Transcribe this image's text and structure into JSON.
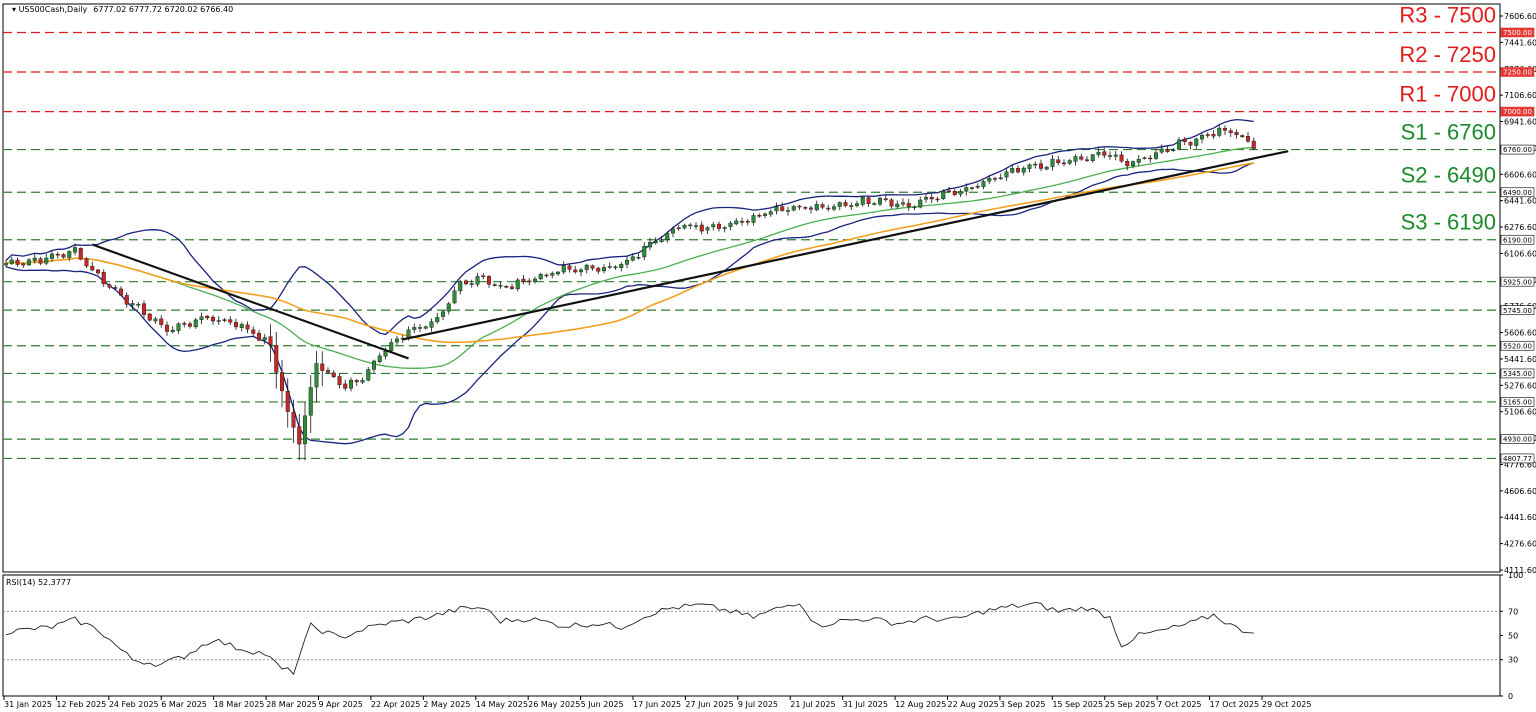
{
  "header": {
    "symbol": "US500Cash,Daily",
    "ohlc": "6777.02 6777.72 6720.02 6766.40"
  },
  "rsi_label": "RSI(14) 52.3777",
  "colors": {
    "resistance": "#e31b1b",
    "support": "#1a8a2a",
    "level_line": "#2e7d32",
    "bull": "#2e8b3a",
    "bear": "#c62828",
    "bollinger": "#1a237e",
    "ma_green": "#4caf50",
    "ma_orange": "#f39c12",
    "rsi": "#222222"
  },
  "chart_data": [
    {
      "type": "candlestick",
      "x_ticks": [
        "31 Jan 2025",
        "12 Feb 2025",
        "24 Feb 2025",
        "6 Mar 2025",
        "18 Mar 2025",
        "28 Mar 2025",
        "9 Apr 2025",
        "22 Apr 2025",
        "2 May 2025",
        "14 May 2025",
        "26 May 2025",
        "5 Jun 2025",
        "17 Jun 2025",
        "27 Jun 2025",
        "9 Jul 2025",
        "21 Jul 2025",
        "31 Jul 2025",
        "12 Aug 2025",
        "22 Aug 2025",
        "3 Sep 2025",
        "15 Sep 2025",
        "25 Sep 2025",
        "7 Oct 2025",
        "17 Oct 2025",
        "29 Oct 2025"
      ],
      "y_ticks": [
        "7606.60",
        "7441.60",
        "7276.60",
        "7106.60",
        "6941.60",
        "6776.60",
        "6606.60",
        "6441.60",
        "6276.60",
        "6106.60",
        "5941.60",
        "5776.60",
        "5606.60",
        "5441.60",
        "5276.60",
        "5106.60",
        "4941.60",
        "4776.60",
        "4606.60",
        "4441.60",
        "4276.60",
        "4111.60"
      ],
      "ylim": [
        4090,
        7680
      ],
      "levels": [
        {
          "label": "R3 - 7500",
          "value": 7500,
          "badge": "7500.00",
          "kind": "resistance"
        },
        {
          "label": "R2 - 7250",
          "value": 7250,
          "badge": "7250.00",
          "kind": "resistance"
        },
        {
          "label": "R1 - 7000",
          "value": 7000,
          "badge": "7000.00",
          "kind": "resistance"
        },
        {
          "label": "S1 - 6760",
          "value": 6760,
          "badge": "6760.00",
          "kind": "support"
        },
        {
          "label": "S2 - 6490",
          "value": 6490,
          "badge": "6490.00",
          "kind": "support"
        },
        {
          "label": "S3 - 6190",
          "value": 6190,
          "badge": "6190.00",
          "kind": "support"
        },
        {
          "label": "",
          "value": 5925,
          "badge": "5925.00",
          "kind": "support"
        },
        {
          "label": "",
          "value": 5745,
          "badge": "5745.00",
          "kind": "support"
        },
        {
          "label": "",
          "value": 5520,
          "badge": "5520.00",
          "kind": "support"
        },
        {
          "label": "",
          "value": 5345,
          "badge": "5345.00",
          "kind": "support"
        },
        {
          "label": "",
          "value": 5165,
          "badge": "5165.00",
          "kind": "support"
        },
        {
          "label": "",
          "value": 4930,
          "badge": "4930.00",
          "kind": "support"
        },
        {
          "label": "",
          "value": 4807.77,
          "badge": "4807.77",
          "kind": "support"
        }
      ],
      "close_anchors": [
        [
          0,
          6040
        ],
        [
          6,
          6065
        ],
        [
          12,
          6120
        ],
        [
          16,
          5960
        ],
        [
          22,
          5780
        ],
        [
          28,
          5620
        ],
        [
          35,
          5700
        ],
        [
          41,
          5650
        ],
        [
          46,
          5520
        ],
        [
          49,
          5090
        ],
        [
          51,
          4910
        ],
        [
          54,
          5420
        ],
        [
          59,
          5250
        ],
        [
          62,
          5320
        ],
        [
          66,
          5500
        ],
        [
          70,
          5620
        ],
        [
          75,
          5670
        ],
        [
          79,
          5910
        ],
        [
          83,
          5960
        ],
        [
          86,
          5880
        ],
        [
          92,
          5950
        ],
        [
          97,
          6000
        ],
        [
          103,
          6010
        ],
        [
          108,
          6040
        ],
        [
          113,
          6200
        ],
        [
          118,
          6280
        ],
        [
          123,
          6270
        ],
        [
          128,
          6310
        ],
        [
          133,
          6380
        ],
        [
          138,
          6400
        ],
        [
          143,
          6390
        ],
        [
          147,
          6420
        ],
        [
          152,
          6450
        ],
        [
          157,
          6400
        ],
        [
          162,
          6470
        ],
        [
          167,
          6500
        ],
        [
          172,
          6580
        ],
        [
          177,
          6640
        ],
        [
          182,
          6670
        ],
        [
          187,
          6700
        ],
        [
          192,
          6740
        ],
        [
          195,
          6660
        ],
        [
          198,
          6710
        ],
        [
          203,
          6780
        ],
        [
          207,
          6830
        ],
        [
          211,
          6880
        ],
        [
          214,
          6860
        ],
        [
          217,
          6766
        ]
      ],
      "trendlines": [
        {
          "from": [
            15,
            6160
          ],
          "to": [
            70,
            5440
          ]
        },
        {
          "from": [
            69,
            5560
          ],
          "to": [
            223,
            6750
          ]
        }
      ]
    },
    {
      "type": "line",
      "name": "RSI(14)",
      "y_ticks": [
        "100",
        "70",
        "50",
        "30",
        "0"
      ],
      "ylim": [
        0,
        100
      ],
      "levels": [
        70,
        30
      ],
      "value_anchors": [
        [
          0,
          53
        ],
        [
          8,
          57
        ],
        [
          12,
          63
        ],
        [
          16,
          55
        ],
        [
          20,
          38
        ],
        [
          22,
          30
        ],
        [
          27,
          26
        ],
        [
          31,
          33
        ],
        [
          36,
          47
        ],
        [
          40,
          40
        ],
        [
          45,
          35
        ],
        [
          48,
          22
        ],
        [
          50,
          20
        ],
        [
          53,
          58
        ],
        [
          58,
          48
        ],
        [
          62,
          55
        ],
        [
          66,
          60
        ],
        [
          71,
          63
        ],
        [
          75,
          67
        ],
        [
          79,
          72
        ],
        [
          83,
          73
        ],
        [
          86,
          62
        ],
        [
          91,
          64
        ],
        [
          97,
          58
        ],
        [
          103,
          60
        ],
        [
          107,
          57
        ],
        [
          112,
          68
        ],
        [
          116,
          73
        ],
        [
          121,
          75
        ],
        [
          126,
          70
        ],
        [
          130,
          65
        ],
        [
          134,
          72
        ],
        [
          138,
          78
        ],
        [
          141,
          58
        ],
        [
          145,
          62
        ],
        [
          150,
          64
        ],
        [
          155,
          60
        ],
        [
          160,
          64
        ],
        [
          165,
          63
        ],
        [
          170,
          70
        ],
        [
          175,
          74
        ],
        [
          179,
          76
        ],
        [
          183,
          70
        ],
        [
          188,
          73
        ],
        [
          192,
          65
        ],
        [
          194,
          42
        ],
        [
          197,
          50
        ],
        [
          202,
          55
        ],
        [
          206,
          60
        ],
        [
          210,
          67
        ],
        [
          214,
          56
        ],
        [
          217,
          52
        ]
      ]
    }
  ]
}
